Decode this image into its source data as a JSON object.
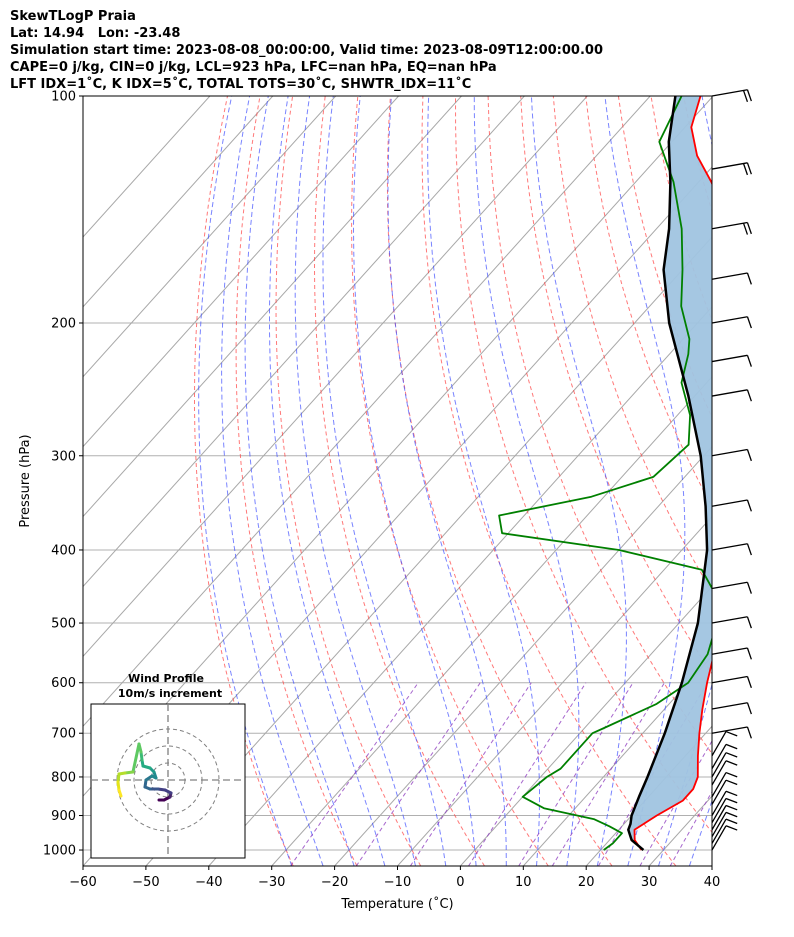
{
  "header": {
    "title": "SkewTLogP Praia",
    "location": "Lat: 14.94   Lon: -23.48",
    "times": "Simulation start time: 2023-08-08_00:00:00, Valid time: 2023-08-09T12:00:00.00",
    "params": "CAPE=0 j/kg, CIN=0 j/kg, LCL=923 hPa, LFC=nan hPa, EQ=nan hPa",
    "indices": "LFT IDX=1$^\\circ$C, K IDX=5$^\\circ$C, TOTAL TOTS=30$^\\circ$C, SHWTR_IDX=11$^\\circ$C"
  },
  "chart_data": {
    "type": "line",
    "xlabel": "Temperature ($^\\circ$C)",
    "ylabel": "Pressure (hPa)",
    "xlim": [
      -60,
      40
    ],
    "ylim": [
      1050,
      100
    ],
    "y_scale": "log",
    "skew": true,
    "grid": true,
    "x_ticks": [
      -60,
      -50,
      -40,
      -30,
      -20,
      -10,
      0,
      10,
      20,
      30,
      40
    ],
    "y_ticks": [
      1000,
      900,
      800,
      700,
      600,
      500,
      400,
      300,
      200,
      100
    ],
    "series": [
      {
        "role": "temperature",
        "color": "#ff0000",
        "points": [
          [
            1000,
            26.5
          ],
          [
            970,
            24
          ],
          [
            940,
            22.5
          ],
          [
            900,
            24
          ],
          [
            860,
            26
          ],
          [
            830,
            26
          ],
          [
            800,
            25
          ],
          [
            750,
            22
          ],
          [
            700,
            19
          ],
          [
            650,
            16
          ],
          [
            600,
            13
          ],
          [
            550,
            10
          ],
          [
            500,
            6
          ],
          [
            450,
            2
          ],
          [
            400,
            -2.5
          ],
          [
            350,
            -8
          ],
          [
            300,
            -14
          ],
          [
            260,
            -20
          ],
          [
            230,
            -25.5
          ],
          [
            200,
            -32
          ],
          [
            170,
            -40
          ],
          [
            150,
            -48
          ],
          [
            130,
            -58
          ],
          [
            120,
            -64
          ],
          [
            110,
            -69
          ],
          [
            100,
            -72
          ]
        ]
      },
      {
        "role": "dewpoint",
        "color": "#008000",
        "points": [
          [
            1000,
            20.5
          ],
          [
            980,
            21
          ],
          [
            950,
            21
          ],
          [
            930,
            18
          ],
          [
            910,
            14.5
          ],
          [
            880,
            5
          ],
          [
            850,
            0
          ],
          [
            800,
            1
          ],
          [
            780,
            2
          ],
          [
            700,
            2
          ],
          [
            690,
            3
          ],
          [
            640,
            8
          ],
          [
            600,
            10
          ],
          [
            550,
            9
          ],
          [
            500,
            6
          ],
          [
            460,
            2
          ],
          [
            425,
            -4
          ],
          [
            400,
            -20
          ],
          [
            380,
            -41
          ],
          [
            360,
            -44
          ],
          [
            340,
            -32
          ],
          [
            320,
            -25
          ],
          [
            290,
            -24
          ],
          [
            265,
            -28
          ],
          [
            240,
            -34
          ],
          [
            220,
            -37
          ],
          [
            210,
            -39
          ],
          [
            190,
            -45
          ],
          [
            170,
            -50
          ],
          [
            150,
            -56
          ],
          [
            130,
            -64
          ],
          [
            115,
            -72
          ],
          [
            100,
            -75
          ]
        ]
      },
      {
        "role": "parcel",
        "color": "#000000",
        "points": [
          [
            1000,
            26.8
          ],
          [
            970,
            23.5
          ],
          [
            940,
            21.5
          ],
          [
            923,
            21
          ],
          [
            900,
            20
          ],
          [
            850,
            18.5
          ],
          [
            800,
            17
          ],
          [
            700,
            13.5
          ],
          [
            600,
            9
          ],
          [
            500,
            3
          ],
          [
            400,
            -6
          ],
          [
            350,
            -12.5
          ],
          [
            300,
            -20.5
          ],
          [
            250,
            -31
          ],
          [
            200,
            -44.5
          ],
          [
            170,
            -53
          ],
          [
            150,
            -58
          ],
          [
            130,
            -64.5
          ],
          [
            115,
            -70.5
          ],
          [
            100,
            -76
          ]
        ]
      }
    ],
    "shaded_region": {
      "between": [
        "temperature",
        "parcel"
      ],
      "color": "#a0c4e0"
    },
    "wind_barb_levels": [
      1000,
      980,
      960,
      940,
      920,
      900,
      870,
      850,
      820,
      800,
      780,
      750,
      700,
      650,
      600,
      550,
      500,
      450,
      400,
      350,
      300,
      250,
      225,
      200,
      175,
      150,
      125,
      100
    ],
    "inset": {
      "title": "Wind Profile",
      "subtitle": "10m/s increment",
      "rings": 3
    }
  }
}
